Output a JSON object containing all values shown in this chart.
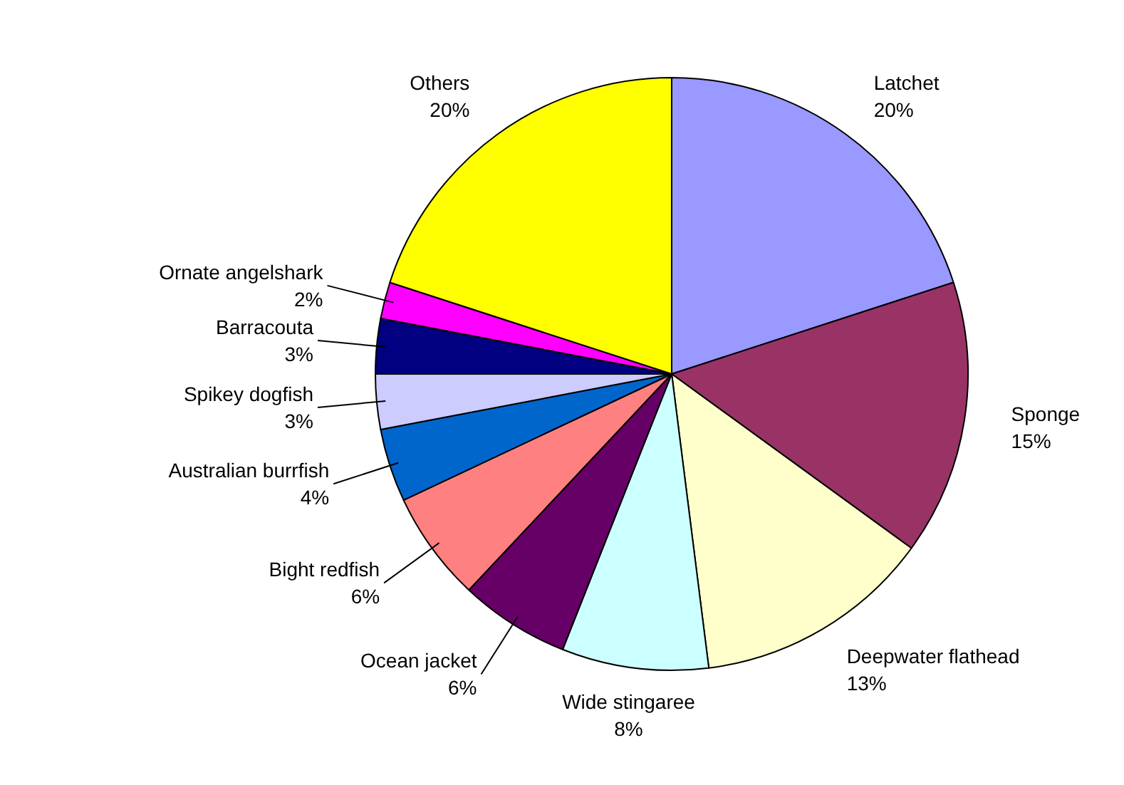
{
  "chart_data": {
    "type": "pie",
    "categories": [
      "Latchet",
      "Sponge",
      "Deepwater flathead",
      "Wide stingaree",
      "Ocean jacket",
      "Bight redfish",
      "Australian burrfish",
      "Spikey dogfish",
      "Barracouta",
      "Ornate angelshark",
      "Others"
    ],
    "values": [
      20,
      15,
      13,
      8,
      6,
      6,
      4,
      3,
      3,
      2,
      20
    ],
    "colors": [
      "#9999ff",
      "#993366",
      "#ffffcc",
      "#ccffff",
      "#660066",
      "#ff8080",
      "#0066cc",
      "#ccccff",
      "#000080",
      "#ff00ff",
      "#ffff00"
    ],
    "value_labels": [
      "20%",
      "15%",
      "13%",
      "8%",
      "6%",
      "6%",
      "4%",
      "3%",
      "3%",
      "2%",
      "20%"
    ]
  }
}
